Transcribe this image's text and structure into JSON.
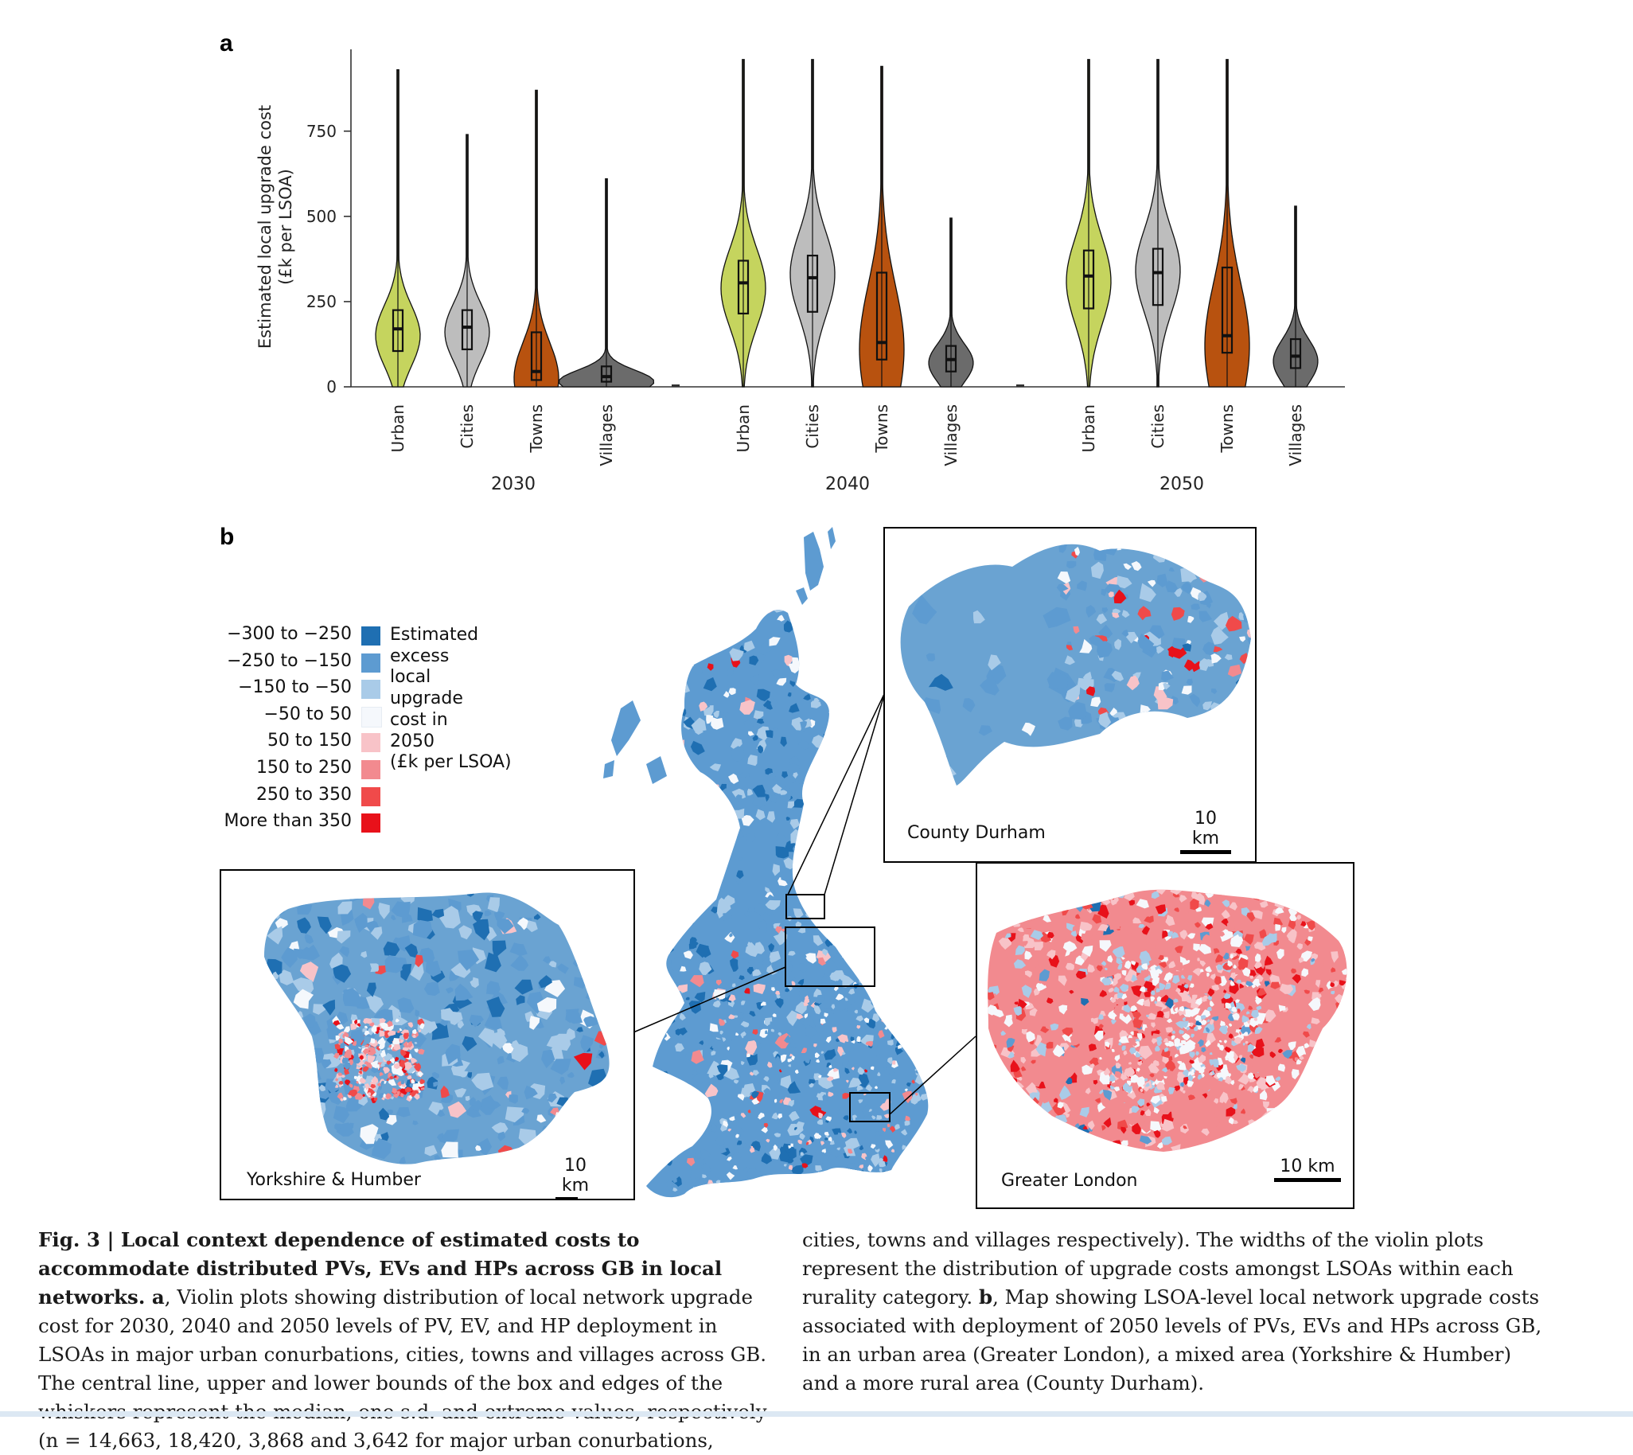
{
  "panel_a_label": "a",
  "panel_b_label": "b",
  "chart_data": {
    "type": "violin",
    "ylabel_line1": "Estimated local upgrade cost",
    "ylabel_line2": "(£k per LSOA)",
    "yticks": [
      0,
      250,
      500,
      750
    ],
    "ylim": [
      0,
      1000
    ],
    "groups": [
      {
        "year": "2030",
        "categories": [
          {
            "name": "Urban",
            "color": "#c5d45e",
            "min": 0,
            "q1": 105,
            "median": 170,
            "q3": 225,
            "max": 930,
            "mode": 150
          },
          {
            "name": "Cities",
            "color": "#bdbdbd",
            "min": 0,
            "q1": 110,
            "median": 175,
            "q3": 225,
            "max": 740,
            "mode": 160
          },
          {
            "name": "Towns",
            "color": "#b8520f",
            "min": 0,
            "q1": 20,
            "median": 45,
            "q3": 160,
            "max": 870,
            "mode": 25
          },
          {
            "name": "Villages",
            "color": "#6b6b6b",
            "min": 0,
            "q1": 15,
            "median": 30,
            "q3": 60,
            "max": 610,
            "mode": 15
          }
        ]
      },
      {
        "year": "2040",
        "categories": [
          {
            "name": "Urban",
            "color": "#c5d45e",
            "min": 0,
            "q1": 215,
            "median": 305,
            "q3": 370,
            "max": 960,
            "mode": 290
          },
          {
            "name": "Cities",
            "color": "#bdbdbd",
            "min": 0,
            "q1": 220,
            "median": 320,
            "q3": 385,
            "max": 960,
            "mode": 330
          },
          {
            "name": "Towns",
            "color": "#b8520f",
            "min": 0,
            "q1": 80,
            "median": 130,
            "q3": 335,
            "max": 940,
            "mode": 110
          },
          {
            "name": "Villages",
            "color": "#6b6b6b",
            "min": 0,
            "q1": 45,
            "median": 80,
            "q3": 120,
            "max": 495,
            "mode": 70
          }
        ]
      },
      {
        "year": "2050",
        "categories": [
          {
            "name": "Urban",
            "color": "#c5d45e",
            "min": 0,
            "q1": 230,
            "median": 325,
            "q3": 400,
            "max": 960,
            "mode": 310
          },
          {
            "name": "Cities",
            "color": "#bdbdbd",
            "min": 0,
            "q1": 240,
            "median": 335,
            "q3": 405,
            "max": 960,
            "mode": 340
          },
          {
            "name": "Towns",
            "color": "#b8520f",
            "min": 0,
            "q1": 100,
            "median": 150,
            "q3": 350,
            "max": 960,
            "mode": 120
          },
          {
            "name": "Villages",
            "color": "#6b6b6b",
            "min": 0,
            "q1": 55,
            "median": 90,
            "q3": 140,
            "max": 530,
            "mode": 75
          }
        ]
      }
    ]
  },
  "legend": {
    "title_lines": [
      "Estimated",
      "excess",
      "local",
      "upgrade",
      "cost in",
      "2050",
      "(£k per LSOA)"
    ],
    "items": [
      {
        "label": "−300 to −250",
        "color": "#1f6fb2"
      },
      {
        "label": "−250 to −150",
        "color": "#5d9bd1"
      },
      {
        "label": "−150 to −50",
        "color": "#a9cbe8"
      },
      {
        "label": "−50 to 50",
        "color": "#f5f8fc"
      },
      {
        "label": "50 to 150",
        "color": "#f8c3c8"
      },
      {
        "label": "150 to 250",
        "color": "#f28a8f"
      },
      {
        "label": "250 to 350",
        "color": "#f04a4a"
      },
      {
        "label": "More than 350",
        "color": "#e8111a"
      }
    ]
  },
  "insets": {
    "durham": {
      "label": "County Durham",
      "scale": "10 km"
    },
    "yorkshire": {
      "label": "Yorkshire & Humber",
      "scale": "10 km"
    },
    "london": {
      "label": "Greater London",
      "scale": "10 km"
    }
  },
  "caption": {
    "fig_label": "Fig. 3 | ",
    "title": "Local context dependence of estimated costs to accommodate distributed PVs, EVs and HPs across GB in local networks.",
    "a_label": " a",
    "a_text": ", Violin plots showing distribution of local network upgrade cost for 2030, 2040 and 2050 levels of PV, EV, and HP deployment in LSOAs in major urban conurbations, cities, towns and villages across GB. The central line, upper and lower bounds of the box and edges of the whiskers represent the median, one s.d. and extreme values, respectively (n = 14,663, 18,420, 3,868 and 3,642 for major urban conurbations,",
    "right_text_1": "cities, towns and villages respectively). The widths of the violin plots represent the distribution of upgrade costs amongst LSOAs within each rurality category.",
    "b_label": "b",
    "b_text": ", Map showing LSOA-level local network upgrade costs associated with deployment of 2050 levels of PVs, EVs and HPs across GB, in an urban area (Greater London), a mixed area (Yorkshire & Humber) and a more rural area (County Durham)."
  }
}
